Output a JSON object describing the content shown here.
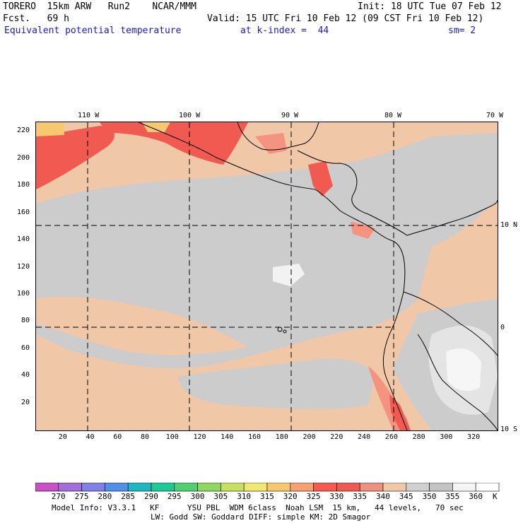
{
  "header": {
    "model": "TORERO  15km ARW   Run2    NCAR/MMM",
    "init": "Init: 18 UTC Tue 07 Feb 12",
    "fcst": "Fcst.   69 h",
    "valid": "Valid: 15 UTC Fri 10 Feb 12 (09 CST Fri 10 Feb 12)",
    "field": "Equivalent potential temperature",
    "level": "at k-index =  44",
    "smooth": "sm= 2"
  },
  "map": {
    "lon_labels": [
      "110 W",
      "100 W",
      "90 W",
      "80 W",
      "70 W"
    ],
    "lat_labels": [
      "10 N",
      "0",
      "10 S"
    ],
    "grid_x_ticks": [
      "20",
      "40",
      "60",
      "80",
      "100",
      "120",
      "140",
      "160",
      "180",
      "200",
      "220",
      "240",
      "260",
      "280",
      "300",
      "320"
    ],
    "grid_y_ticks": [
      "20",
      "40",
      "60",
      "80",
      "100",
      "120",
      "140",
      "160",
      "180",
      "200",
      "220"
    ]
  },
  "colorbar": {
    "labels": [
      "270",
      "275",
      "280",
      "285",
      "290",
      "295",
      "300",
      "305",
      "310",
      "315",
      "320",
      "325",
      "330",
      "335",
      "340",
      "345",
      "350",
      "355",
      "360"
    ],
    "unit": "K",
    "colors": [
      "#c850c8",
      "#a070d8",
      "#8080e8",
      "#5090e8",
      "#20b8c0",
      "#20c898",
      "#50d070",
      "#90d860",
      "#c8e060",
      "#f0e870",
      "#f8c870",
      "#f8a070",
      "#f85a50",
      "#f05a50",
      "#f09080",
      "#f0c8a8",
      "#d0d0d0",
      "#c4c4c4",
      "#f4f4f4",
      "#ffffff"
    ]
  },
  "footer": {
    "line1": "Model Info: V3.3.1   KF      YSU PBL  WDM 6class  Noah LSM  15 km,   44 levels,   70 sec",
    "line2": "LW: Godd SW: Goddard DIFF: simple KM: 2D Smagor"
  },
  "colors": {
    "background_field": "#f0c8a8",
    "gray_field": "#cccccc",
    "light_gray_field": "#e4e4e4",
    "red_field": "#f05a50",
    "salmon_field": "#f49480",
    "yellow_field": "#f8c870"
  }
}
